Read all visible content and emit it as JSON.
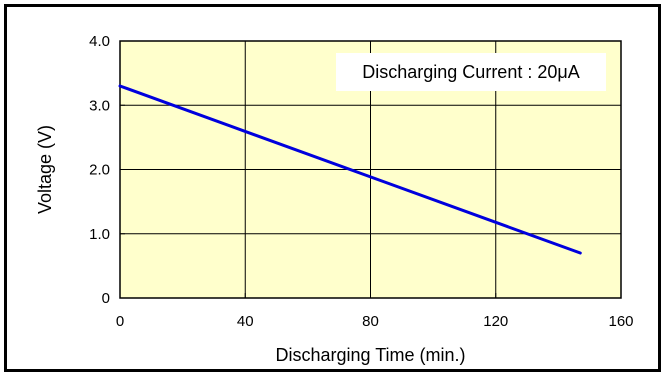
{
  "chart_data": {
    "type": "line",
    "xlabel": "Discharging Time (min.)",
    "ylabel": "Voltage (V)",
    "xlim": [
      0,
      160
    ],
    "ylim": [
      0,
      4
    ],
    "x_ticks": [
      "0",
      "40",
      "80",
      "120",
      "160"
    ],
    "y_ticks": [
      "0",
      "1.0",
      "2.0",
      "3.0",
      "4.0"
    ],
    "grid": true,
    "annotation": "Discharging Current : 20μA",
    "series": [
      {
        "x": [
          0,
          147
        ],
        "y": [
          3.3,
          0.7
        ]
      }
    ],
    "colors": {
      "plot_background": "#ffffcc",
      "line": "#0000dd",
      "grid": "#000000"
    }
  }
}
